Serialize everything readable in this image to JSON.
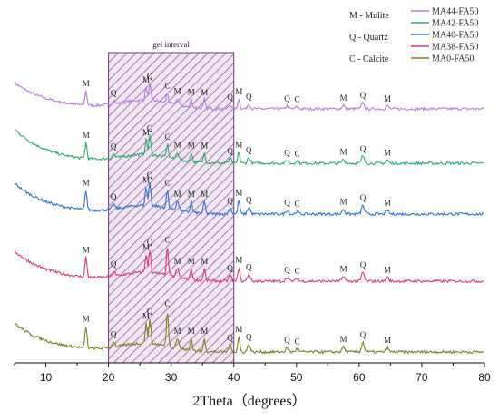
{
  "chart_data": {
    "type": "line",
    "xlabel": "2Theta（degrees）",
    "xlim": [
      5,
      80
    ],
    "xticks": [
      10,
      20,
      30,
      40,
      50,
      60,
      70,
      80
    ],
    "region": {
      "label": "gel interval",
      "x": [
        20,
        40
      ]
    },
    "phase_key": [
      "M - Mulite",
      "Q - Quartz",
      "C - Calcite"
    ],
    "peaks": [
      {
        "x": 16.4,
        "label": "M"
      },
      {
        "x": 20.8,
        "label": "Q"
      },
      {
        "x": 26.0,
        "label": "M"
      },
      {
        "x": 26.6,
        "label": "Q"
      },
      {
        "x": 29.4,
        "label": "C"
      },
      {
        "x": 31.0,
        "label": "M"
      },
      {
        "x": 33.2,
        "label": "M"
      },
      {
        "x": 35.3,
        "label": "M"
      },
      {
        "x": 39.4,
        "label": "Q"
      },
      {
        "x": 40.8,
        "label": "M"
      },
      {
        "x": 42.4,
        "label": "Q"
      },
      {
        "x": 48.5,
        "label": "Q"
      },
      {
        "x": 50.1,
        "label": "C"
      },
      {
        "x": 57.5,
        "label": "M"
      },
      {
        "x": 60.6,
        "label": "Q"
      },
      {
        "x": 64.5,
        "label": "M"
      }
    ],
    "series": [
      {
        "name": "MA44-FA50",
        "color": "#b57ee0",
        "calcite": 0.7
      },
      {
        "name": "MA42-FA50",
        "color": "#2eaa6e",
        "calcite": 0.8
      },
      {
        "name": "MA40-FA50",
        "color": "#2e74d4",
        "calcite": 0.9
      },
      {
        "name": "MA38-FA50",
        "color": "#e0357e",
        "calcite": 1.4
      },
      {
        "name": "MA0-FA50",
        "color": "#7f7f1f",
        "calcite": 1.6
      }
    ]
  }
}
